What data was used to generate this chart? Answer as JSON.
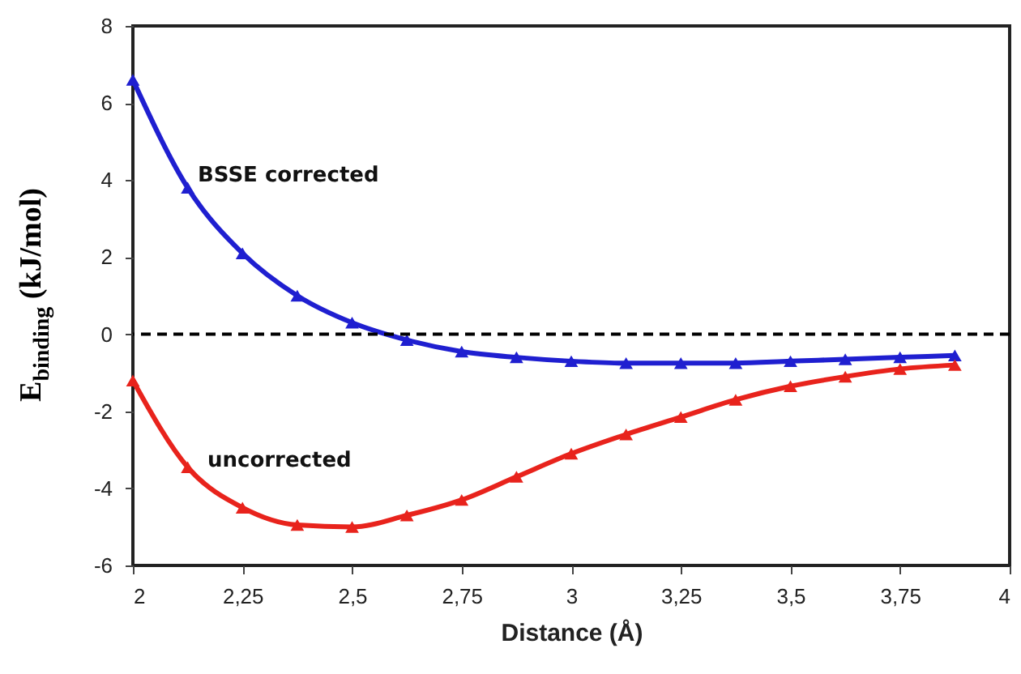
{
  "chart_data": {
    "type": "line",
    "xlabel": "Distance (Å)",
    "ylabel": "E$_{binding}$ (kJ/mol)",
    "x": [
      2,
      2.125,
      2.25,
      2.375,
      2.5,
      2.625,
      2.75,
      2.875,
      3,
      3.125,
      3.25,
      3.375,
      3.5,
      3.625,
      3.75,
      3.875
    ],
    "series": [
      {
        "name": "BSSE corrected",
        "color": "#1f1fd0",
        "values": [
          6.6,
          3.8,
          2.1,
          1.0,
          0.3,
          -0.15,
          -0.45,
          -0.6,
          -0.7,
          -0.75,
          -0.75,
          -0.75,
          -0.7,
          -0.65,
          -0.6,
          -0.55
        ]
      },
      {
        "name": "uncorrected",
        "color": "#e8231c",
        "values": [
          -1.2,
          -3.45,
          -4.5,
          -4.95,
          -5.0,
          -4.7,
          -4.3,
          -3.7,
          -3.1,
          -2.6,
          -2.15,
          -1.7,
          -1.35,
          -1.1,
          -0.9,
          -0.8
        ]
      }
    ],
    "xlim": [
      2,
      4
    ],
    "ylim": [
      -6,
      8
    ],
    "xticks": [
      2,
      {
        "value": 2.25,
        "label": "2,25"
      },
      {
        "value": 2.5,
        "label": "2,5"
      },
      {
        "value": 2.75,
        "label": "2,75"
      },
      3,
      {
        "value": 3.25,
        "label": "3,25"
      },
      {
        "value": 3.5,
        "label": "3,5"
      },
      {
        "value": 3.75,
        "label": "3,75"
      },
      4
    ],
    "yticks": [
      -6,
      -4,
      -2,
      0,
      2,
      4,
      6,
      8
    ],
    "ref_lines": [
      {
        "axis": "y",
        "value": 0,
        "color": "#000000",
        "line_style": "dashed"
      }
    ],
    "marker": "triangle",
    "grid": false
  }
}
